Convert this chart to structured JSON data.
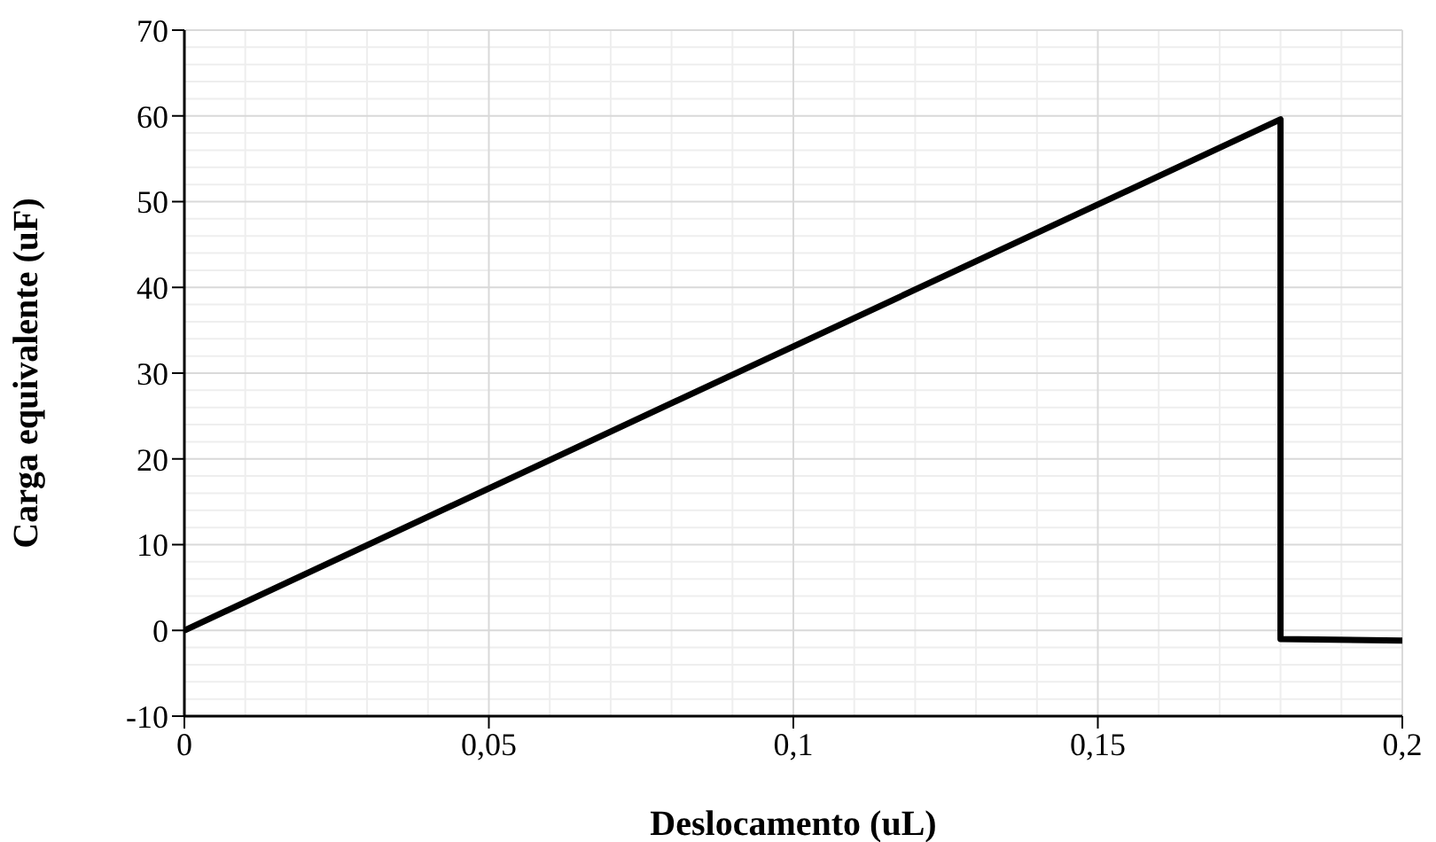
{
  "chart_data": {
    "type": "line",
    "xlabel": "Deslocamento (uL)",
    "ylabel": "Carga equivalente (uF)",
    "x": [
      0,
      0.18,
      0.18,
      0.2
    ],
    "series": [
      {
        "color": "#000000",
        "values": [
          0,
          59.6,
          -1,
          -1.2
        ]
      }
    ],
    "xlim": [
      0,
      0.2
    ],
    "xticks": [
      {
        "value": 0,
        "label": "0"
      },
      {
        "value": 0.05,
        "label": "0,05"
      },
      {
        "value": 0.1,
        "label": "0,1"
      },
      {
        "value": 0.15,
        "label": "0,15"
      },
      {
        "value": 0.2,
        "label": "0,2"
      }
    ],
    "ylim": [
      -10,
      70
    ],
    "yticks": [
      -10,
      0,
      10,
      20,
      30,
      40,
      50,
      60,
      70
    ],
    "grid": true,
    "marker": "none",
    "line_style": "solid"
  }
}
